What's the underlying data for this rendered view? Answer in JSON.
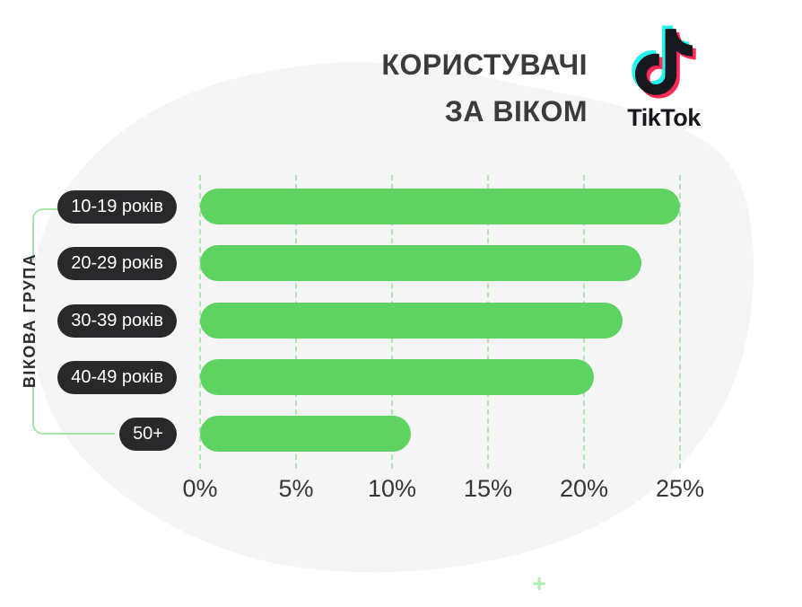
{
  "header": {
    "title_line1": "КОРИСТУВАЧІ",
    "title_line2": "ЗА ВІКОМ",
    "brand": "TikTok"
  },
  "chart_data": {
    "type": "bar",
    "orientation": "horizontal",
    "title": "КОРИСТУВАЧІ ЗА ВІКОМ",
    "ylabel": "ВІКОВА ГРУПА",
    "unit": "%",
    "categories": [
      "10-19 років",
      "20-29 років",
      "30-39 років",
      "40-49 років",
      "50+"
    ],
    "values": [
      25,
      23,
      22,
      20.5,
      11
    ],
    "xticks": [
      0,
      5,
      10,
      15,
      20,
      25
    ],
    "xtick_labels": [
      "0%",
      "5%",
      "10%",
      "15%",
      "20%",
      "25%"
    ],
    "xlim": [
      0,
      25
    ],
    "grid": "dashed-vertical",
    "legend": "none"
  },
  "colors": {
    "bar_green": "#5ed362",
    "grid_green": "#aee7b1",
    "bracket_green": "#a9e3ac",
    "pill_dark": "#29292b",
    "title_gray": "#3b3b3b",
    "blob_gray": "#f5f5f6",
    "tiktok_cyan": "#25f4ee",
    "tiktok_pink": "#fe2c55",
    "tiktok_black": "#16181d"
  },
  "decor": {
    "sparkle": "+"
  }
}
